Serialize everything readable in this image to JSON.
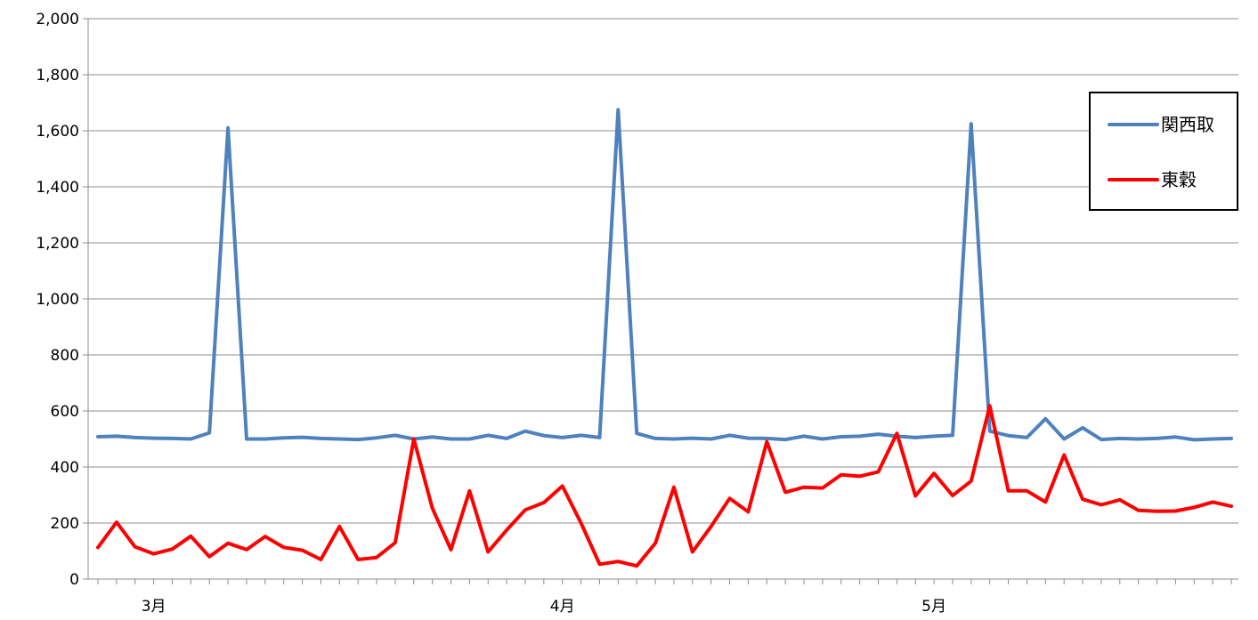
{
  "chart_data": {
    "type": "line",
    "title": "",
    "xlabel": "",
    "ylabel": "",
    "ylim": [
      0,
      2000
    ],
    "y_ticks": [
      0,
      200,
      400,
      600,
      800,
      1000,
      1200,
      1400,
      1600,
      1800,
      2000
    ],
    "y_tick_labels": [
      "0",
      "200",
      "400",
      "600",
      "800",
      "1,000",
      "1,200",
      "1,400",
      "1,600",
      "1,800",
      "2,000"
    ],
    "grid": true,
    "legend_position": "right",
    "x_month_labels": [
      {
        "label": "3月",
        "index": 3
      },
      {
        "label": "4月",
        "index": 25
      },
      {
        "label": "5月",
        "index": 45
      }
    ],
    "series": [
      {
        "name": "関西取",
        "color": "#4f81bd",
        "values": [
          508,
          510,
          505,
          503,
          502,
          500,
          522,
          1610,
          500,
          500,
          504,
          506,
          502,
          500,
          498,
          504,
          513,
          500,
          507,
          500,
          500,
          513,
          502,
          528,
          512,
          505,
          513,
          505,
          1675,
          520,
          502,
          500,
          503,
          500,
          513,
          503,
          502,
          498,
          510,
          500,
          508,
          510,
          517,
          510,
          505,
          510,
          513,
          1625,
          528,
          512,
          505,
          572,
          500,
          540,
          498,
          502,
          500,
          502,
          507,
          497,
          500,
          502
        ]
      },
      {
        "name": "東穀",
        "color": "#ff0000",
        "values": [
          113,
          203,
          115,
          90,
          107,
          153,
          80,
          128,
          105,
          152,
          113,
          103,
          70,
          188,
          70,
          77,
          130,
          500,
          253,
          105,
          315,
          97,
          175,
          247,
          273,
          332,
          200,
          53,
          63,
          47,
          128,
          328,
          97,
          188,
          288,
          240,
          490,
          310,
          328,
          325,
          372,
          367,
          383,
          520,
          297,
          377,
          298,
          350,
          618,
          315,
          315,
          275,
          443,
          285,
          265,
          283,
          245,
          242,
          243,
          256,
          275,
          260
        ]
      }
    ]
  }
}
